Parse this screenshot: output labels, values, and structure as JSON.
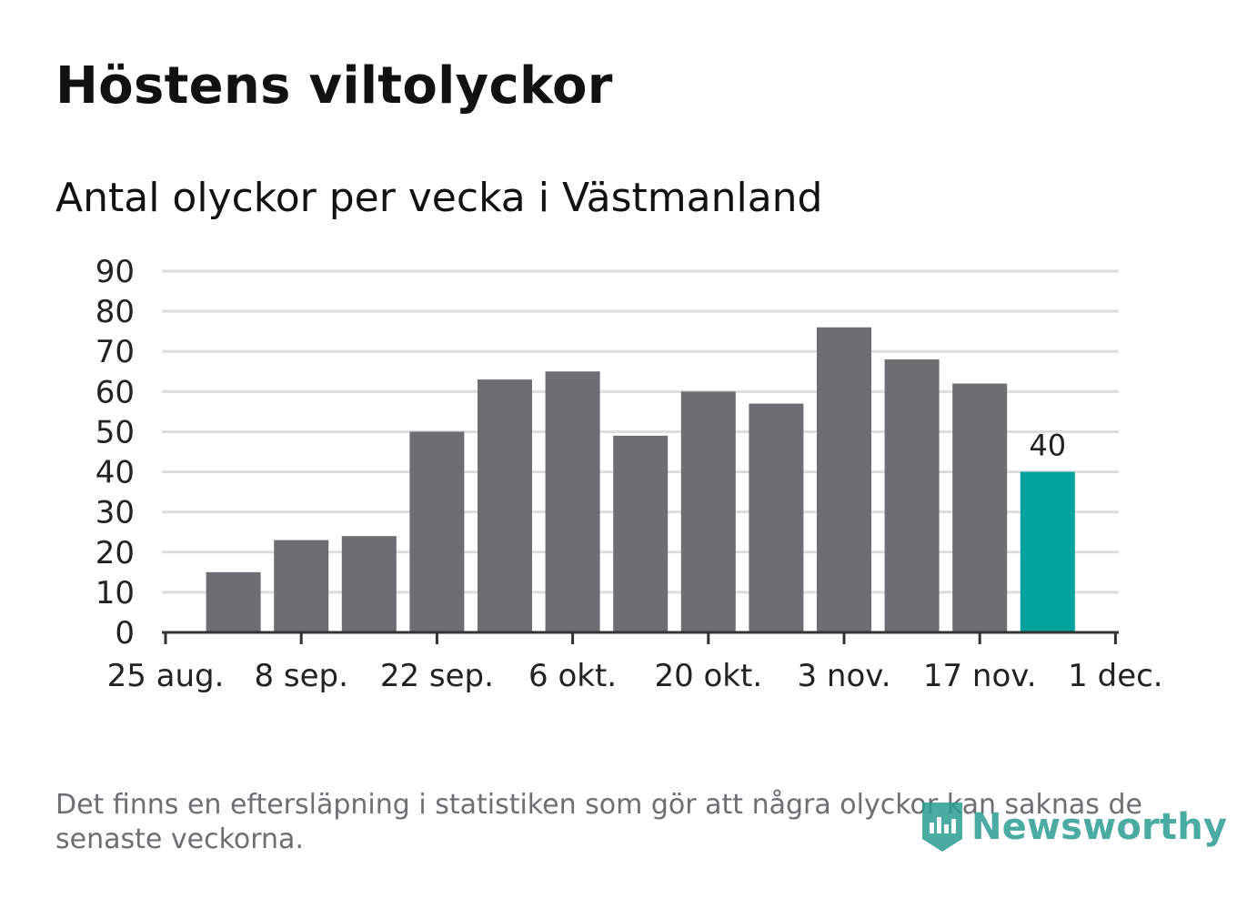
{
  "title": "Höstens viltolyckor",
  "subtitle": "Antal olyckor per vecka i Västmanland",
  "footnote": "Det finns en eftersläpning i statistiken som gör att några olyckor kan saknas de senaste veckorna.",
  "logo": {
    "icon": "newsworthy-logo-icon",
    "text": "Newsworthy"
  },
  "colors": {
    "bar": "#6d6d72",
    "highlight": "#00a39b",
    "grid": "#dddddd",
    "axis": "#333333",
    "text": "#222222"
  },
  "chart_data": {
    "type": "bar",
    "title": "Höstens viltolyckor",
    "subtitle": "Antal olyckor per vecka i Västmanland",
    "xlabel": "",
    "ylabel": "",
    "ylim": [
      0,
      90
    ],
    "yticks": [
      0,
      10,
      20,
      30,
      40,
      50,
      60,
      70,
      80,
      90
    ],
    "xticks": [
      "25 aug.",
      "8 sep.",
      "22 sep.",
      "6 okt.",
      "20 okt.",
      "3 nov.",
      "17 nov.",
      "1 dec."
    ],
    "grid": true,
    "weeks": [
      "1 sep.",
      "8 sep.",
      "15 sep.",
      "22 sep.",
      "29 sep.",
      "6 okt.",
      "13 okt.",
      "20 okt.",
      "27 okt.",
      "3 nov.",
      "10 nov.",
      "17 nov.",
      "24 nov."
    ],
    "values": [
      15,
      23,
      24,
      50,
      63,
      65,
      49,
      60,
      57,
      76,
      68,
      62,
      40
    ],
    "highlight_index": 12,
    "highlight_label": "40"
  }
}
